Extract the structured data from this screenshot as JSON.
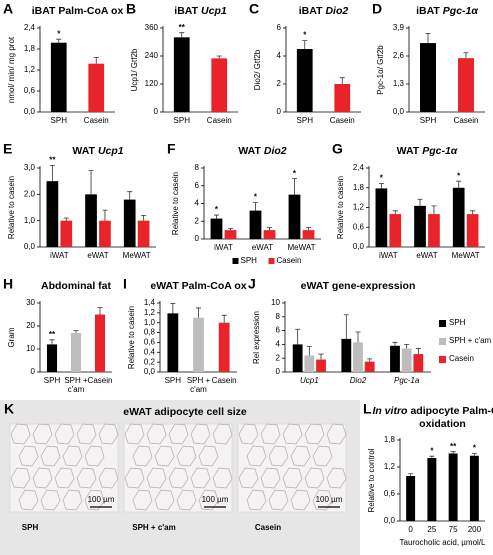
{
  "chart_data": [
    {
      "type": "bar",
      "panel_label": "A",
      "title": [
        {
          "text": "iBAT Palm-CoA ox"
        }
      ],
      "ylabel": "nmol/ min/ mg prot",
      "categories": [
        "SPH",
        "Casein"
      ],
      "values": [
        1.98,
        1.38
      ],
      "errors": [
        0.1,
        0.18
      ],
      "colors": [
        "#000000",
        "#e8242a"
      ],
      "significance": [
        "*",
        null
      ],
      "ylim": [
        0,
        2.4
      ],
      "yticks": [
        {
          "value": 0,
          "label": "0,0"
        },
        {
          "value": 0.6,
          "label": "0,6"
        },
        {
          "value": 1.2,
          "label": "1,2"
        },
        {
          "value": 1.8,
          "label": "1,8"
        },
        {
          "value": 2.4,
          "label": "2,4"
        }
      ]
    },
    {
      "type": "bar",
      "panel_label": "B",
      "title": [
        {
          "text": "iBAT"
        },
        {
          "text": "Ucp1",
          "italic": true
        }
      ],
      "ylabel": "Ucp1/ Gtf2b",
      "categories": [
        "SPH",
        "Casein"
      ],
      "values": [
        320,
        230
      ],
      "errors": [
        20,
        10
      ],
      "colors": [
        "#000000",
        "#e8242a"
      ],
      "significance": [
        "**",
        null
      ],
      "ylim": [
        0,
        360
      ],
      "yticks": [
        0,
        120,
        240,
        360
      ]
    },
    {
      "type": "bar",
      "panel_label": "C",
      "title": [
        {
          "text": "iBAT"
        },
        {
          "text": "Dio2",
          "italic": true
        }
      ],
      "ylabel": "Dio2/ Gtf2b",
      "categories": [
        "SPH",
        "Casein"
      ],
      "values": [
        4.5,
        2.0
      ],
      "errors": [
        0.6,
        0.45
      ],
      "colors": [
        "#000000",
        "#e8242a"
      ],
      "significance": [
        "*",
        null
      ],
      "ylim": [
        0,
        6
      ],
      "yticks": [
        0,
        2,
        4,
        6
      ]
    },
    {
      "type": "bar",
      "panel_label": "D",
      "title": [
        {
          "text": "iBAT"
        },
        {
          "text": "Pgc-1α",
          "italic": true
        }
      ],
      "ylabel": "Pgc-1α/ Gtf2b",
      "categories": [
        "SPH",
        "Casein"
      ],
      "values": [
        3.2,
        2.5
      ],
      "errors": [
        0.45,
        0.25
      ],
      "colors": [
        "#000000",
        "#e8242a"
      ],
      "significance": [
        null,
        null
      ],
      "ylim": [
        0,
        3.9
      ],
      "yticks": [
        {
          "value": 0,
          "label": "0,0"
        },
        {
          "value": 1.3,
          "label": "1,3"
        },
        {
          "value": 2.6,
          "label": "2,6"
        },
        {
          "value": 3.9,
          "label": "3,9"
        }
      ]
    },
    {
      "type": "bar",
      "panel_label": "E",
      "title": [
        {
          "text": "WAT"
        },
        {
          "text": "Ucp1",
          "italic": true
        }
      ],
      "ylabel": "Relative to casein",
      "categories": [
        "iWAT",
        "eWAT",
        "MeWAT"
      ],
      "series": [
        {
          "name": "SPH",
          "color": "#000000",
          "values": [
            2.5,
            2.0,
            1.8
          ],
          "errors": [
            0.6,
            0.9,
            0.3
          ],
          "significance": [
            "**",
            null,
            null
          ]
        },
        {
          "name": "Casein",
          "color": "#e8242a",
          "values": [
            1.0,
            1.0,
            1.0
          ],
          "errors": [
            0.1,
            0.4,
            0.2
          ],
          "significance": [
            null,
            null,
            null
          ]
        }
      ],
      "legend": "none",
      "ylim": [
        0,
        3
      ],
      "yticks": [
        {
          "value": 0,
          "label": "0,0"
        },
        {
          "value": 1,
          "label": "1,0"
        },
        {
          "value": 2,
          "label": "2,0"
        },
        {
          "value": 3,
          "label": "3,0"
        }
      ]
    },
    {
      "type": "bar",
      "panel_label": "F",
      "title": [
        {
          "text": "WAT"
        },
        {
          "text": "Dio2",
          "italic": true
        }
      ],
      "ylabel": "Relative to casein",
      "categories": [
        "iWAT",
        "eWAT",
        "MeWAT"
      ],
      "series": [
        {
          "name": "SPH",
          "color": "#000000",
          "values": [
            2.3,
            3.2,
            5.0
          ],
          "errors": [
            0.4,
            0.9,
            1.8
          ],
          "significance": [
            "*",
            "*",
            "*"
          ]
        },
        {
          "name": "Casein",
          "color": "#e8242a",
          "values": [
            1.0,
            1.0,
            1.0
          ],
          "errors": [
            0.2,
            0.3,
            0.3
          ],
          "significance": [
            null,
            null,
            null
          ]
        }
      ],
      "legend": "bottom",
      "ylim": [
        0,
        8
      ],
      "yticks": [
        0,
        2,
        4,
        6,
        8
      ]
    },
    {
      "type": "bar",
      "panel_label": "G",
      "title": [
        {
          "text": "WAT"
        },
        {
          "text": "Pgc-1α",
          "italic": true
        }
      ],
      "ylabel": "Relative to casein",
      "categories": [
        "iWAT",
        "eWAT",
        "MeWAT"
      ],
      "series": [
        {
          "name": "SPH",
          "color": "#000000",
          "values": [
            1.78,
            1.25,
            1.8
          ],
          "errors": [
            0.15,
            0.2,
            0.2
          ],
          "significance": [
            "*",
            null,
            "*"
          ]
        },
        {
          "name": "Casein",
          "color": "#e8242a",
          "values": [
            1.0,
            1.0,
            1.0
          ],
          "errors": [
            0.1,
            0.25,
            0.1
          ],
          "significance": [
            null,
            null,
            null
          ]
        }
      ],
      "legend": "none",
      "ylim": [
        0,
        2.4
      ],
      "yticks": [
        {
          "value": 0,
          "label": "0,0"
        },
        {
          "value": 0.6,
          "label": "0,6"
        },
        {
          "value": 1.2,
          "label": "1,2"
        },
        {
          "value": 1.8,
          "label": "1,8"
        },
        {
          "value": 2.4,
          "label": "2,4"
        }
      ]
    },
    {
      "type": "bar",
      "panel_label": "H",
      "title": [
        {
          "text": "Abdominal fat"
        }
      ],
      "ylabel": "Gram",
      "categories": [
        "SPH",
        "SPH + c'am",
        "Casein"
      ],
      "values": [
        12,
        17,
        25
      ],
      "errors": [
        2,
        1,
        3
      ],
      "colors": [
        "#000000",
        "#bdbdbd",
        "#e8242a"
      ],
      "significance": [
        "**",
        null,
        null
      ],
      "ylim": [
        0,
        30
      ],
      "yticks": [
        0,
        10,
        20,
        30
      ]
    },
    {
      "type": "bar",
      "panel_label": "I",
      "title": [
        {
          "text": "eWAT Palm-CoA ox"
        }
      ],
      "ylabel": "Relative to casein",
      "categories": [
        "SPH",
        "SPH + c'am",
        "Casein"
      ],
      "values": [
        1.19,
        1.1,
        1.0
      ],
      "errors": [
        0.2,
        0.2,
        0.15
      ],
      "colors": [
        "#000000",
        "#bdbdbd",
        "#e8242a"
      ],
      "significance": [
        null,
        null,
        null
      ],
      "ylim": [
        0,
        1.4
      ],
      "yticks": [
        {
          "value": 0,
          "label": "0,0"
        },
        {
          "value": 0.2,
          "label": "0,2"
        },
        {
          "value": 0.4,
          "label": "0,4"
        },
        {
          "value": 0.6,
          "label": "0,6"
        },
        {
          "value": 0.8,
          "label": "0,8"
        },
        {
          "value": 1,
          "label": "1,0"
        },
        {
          "value": 1.2,
          "label": "1,2"
        },
        {
          "value": 1.4,
          "label": "1,4"
        }
      ]
    },
    {
      "type": "bar",
      "panel_label": "J",
      "title": [
        {
          "text": "eWAT gene-expression"
        }
      ],
      "ylabel": "Rel expression",
      "categories": [
        "Ucp1",
        "Dio2",
        "Pgc-1a"
      ],
      "category_italic": true,
      "series": [
        {
          "name": "SPH",
          "color": "#000000",
          "values": [
            4.0,
            4.8,
            3.8
          ],
          "errors": [
            2.2,
            3.5,
            0.5
          ],
          "significance": [
            null,
            null,
            null
          ]
        },
        {
          "name": "SPH + c'am",
          "color": "#bdbdbd",
          "values": [
            2.4,
            4.3,
            3.4
          ],
          "errors": [
            1.3,
            1.5,
            0.6
          ],
          "significance": [
            null,
            null,
            null
          ]
        },
        {
          "name": "Casein",
          "color": "#e8242a",
          "values": [
            1.8,
            1.5,
            2.6
          ],
          "errors": [
            0.8,
            0.4,
            0.8
          ],
          "significance": [
            null,
            null,
            null
          ]
        }
      ],
      "legend": "right",
      "ylim": [
        0,
        10
      ],
      "yticks": [
        0,
        2,
        4,
        6,
        8,
        10
      ]
    },
    {
      "type": "bar",
      "panel_label": "L",
      "title": [
        {
          "text": "In vitro",
          "italic": true
        },
        {
          "text": "adipocyte Palm-CoA"
        },
        {
          "text": "oxidation",
          "newline": true
        }
      ],
      "ylabel": "Relative to control",
      "xlabel": "Taurocholic acid, µmol/L",
      "categories": [
        "0",
        "25",
        "75",
        "200"
      ],
      "values": [
        1.0,
        1.4,
        1.5,
        1.45
      ],
      "errors": [
        0.05,
        0.04,
        0.04,
        0.05
      ],
      "colors": [
        "#000000",
        "#000000",
        "#000000",
        "#000000"
      ],
      "significance": [
        null,
        "*",
        "**",
        "*"
      ],
      "ylim": [
        0,
        1.8
      ],
      "yticks": [
        {
          "value": 0,
          "label": "0,0"
        },
        {
          "value": 0.6,
          "label": "0,6"
        },
        {
          "value": 1.2,
          "label": "1,2"
        },
        {
          "value": 1.8,
          "label": "1,8"
        }
      ]
    }
  ],
  "micrograph": {
    "panel_label": "K",
    "title": "eWAT adipocyte cell size",
    "images": [
      {
        "label": "SPH",
        "scale_bar": "100 µm"
      },
      {
        "label": "SPH + c'am",
        "scale_bar": "100 µm"
      },
      {
        "label": "Casein",
        "scale_bar": "100 µm"
      }
    ]
  }
}
